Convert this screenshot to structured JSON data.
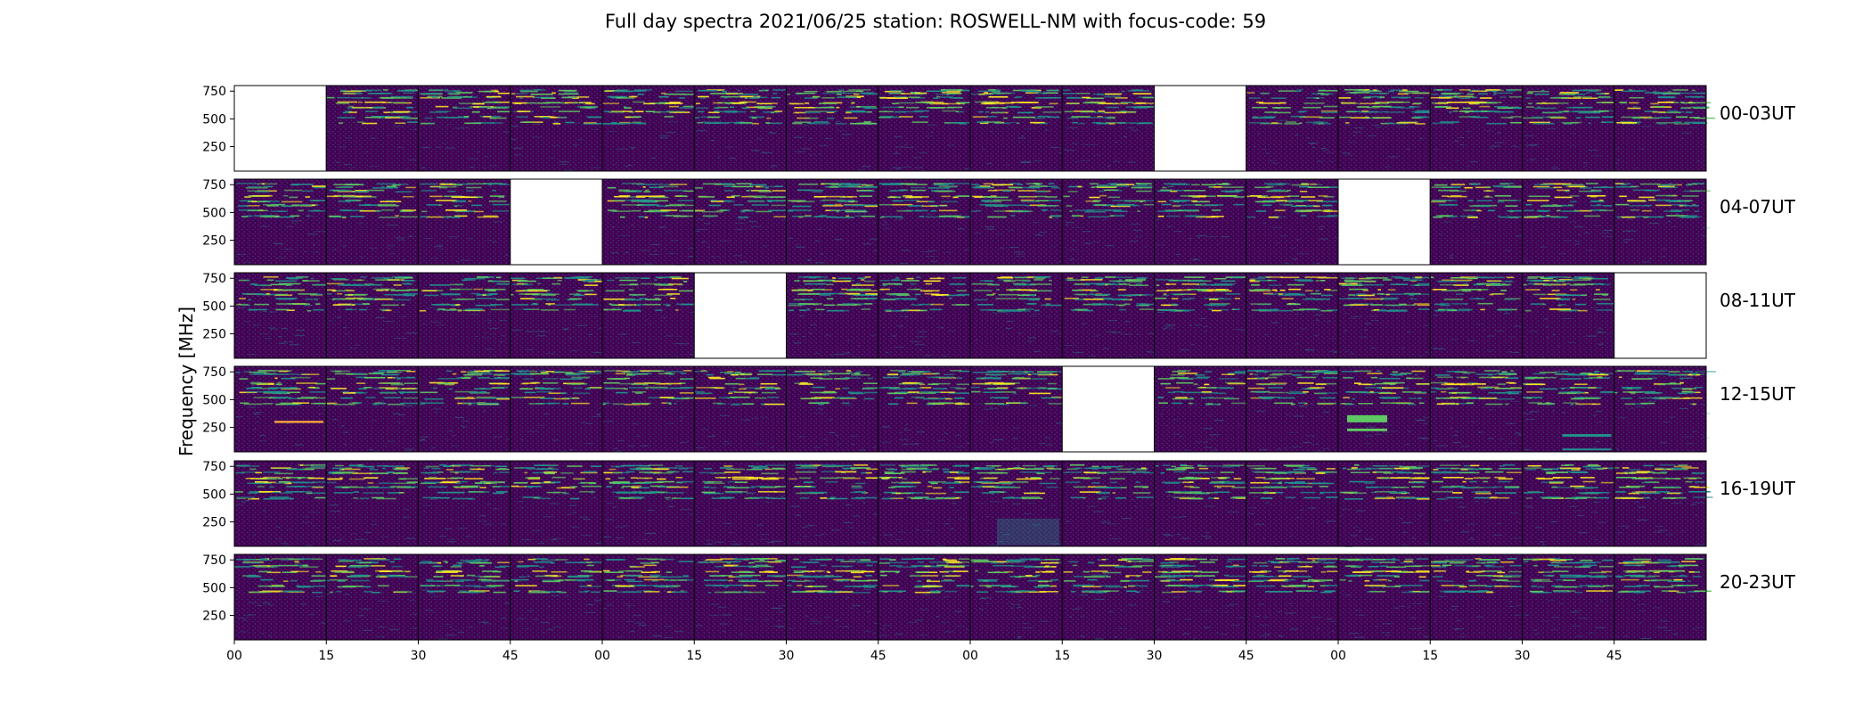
{
  "chart_data": {
    "type": "heatmap",
    "title": "Full day spectra 2021/06/25 station: ROSWELL-NM with focus-code: 59",
    "ylabel": "Frequency [MHz]",
    "xlabel": "",
    "y_ticks": [
      750,
      500,
      250
    ],
    "x_tick_labels": [
      "00",
      "15",
      "30",
      "45",
      "00",
      "15",
      "30",
      "45",
      "00",
      "15",
      "30",
      "45",
      "00",
      "15",
      "30",
      "45"
    ],
    "colormap": "viridis",
    "colors": {
      "background": "#440154",
      "empty": "#ffffff",
      "mid": "#21918c",
      "high": "#5ec962",
      "peak": "#fde725"
    },
    "rows": [
      {
        "label": "00-03UT",
        "missing_panels": [
          0,
          10
        ]
      },
      {
        "label": "04-07UT",
        "missing_panels": [
          3,
          12
        ]
      },
      {
        "label": "08-11UT",
        "missing_panels": [
          5,
          15
        ]
      },
      {
        "label": "12-15UT",
        "missing_panels": [
          9
        ]
      },
      {
        "label": "16-19UT",
        "missing_panels": []
      },
      {
        "label": "20-23UT",
        "missing_panels": []
      }
    ]
  }
}
